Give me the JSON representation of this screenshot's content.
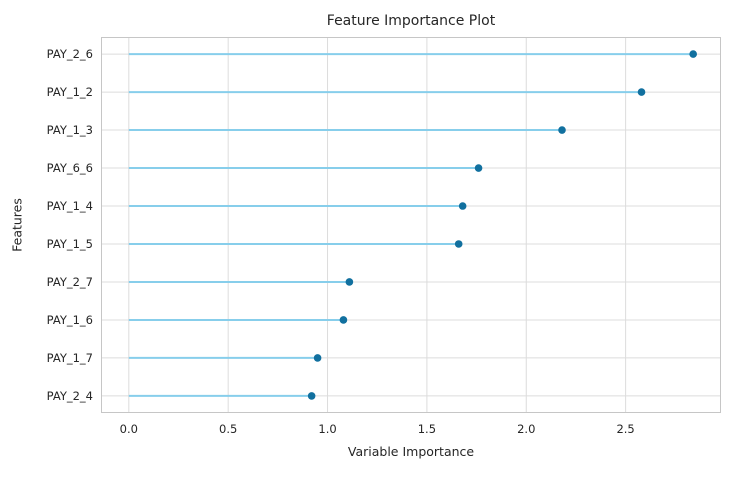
{
  "chart_data": {
    "type": "scatter",
    "variant": "horizontal_lollipop",
    "title": "Feature Importance Plot",
    "xlabel": "Variable Importance",
    "ylabel": "Features",
    "categories": [
      "PAY_2_6",
      "PAY_1_2",
      "PAY_1_3",
      "PAY_6_6",
      "PAY_1_4",
      "PAY_1_5",
      "PAY_2_7",
      "PAY_1_6",
      "PAY_1_7",
      "PAY_2_4"
    ],
    "values": [
      2.84,
      2.58,
      2.18,
      1.76,
      1.68,
      1.66,
      1.11,
      1.08,
      0.95,
      0.92
    ],
    "stem_start": 0.0,
    "xlim": [
      -0.14,
      2.98
    ],
    "x_ticks": [
      0.0,
      0.5,
      1.0,
      1.5,
      2.0,
      2.5
    ],
    "x_tick_labels": [
      "0.0",
      "0.5",
      "1.0",
      "1.5",
      "2.0",
      "2.5"
    ],
    "grid": true,
    "legend": false,
    "colors": {
      "background": "#ffffff",
      "grid": "#dcdcdc",
      "spine": "#c6c6c6",
      "stem": "#87CEEB",
      "dot": "#11709f",
      "text": "#262626"
    }
  }
}
